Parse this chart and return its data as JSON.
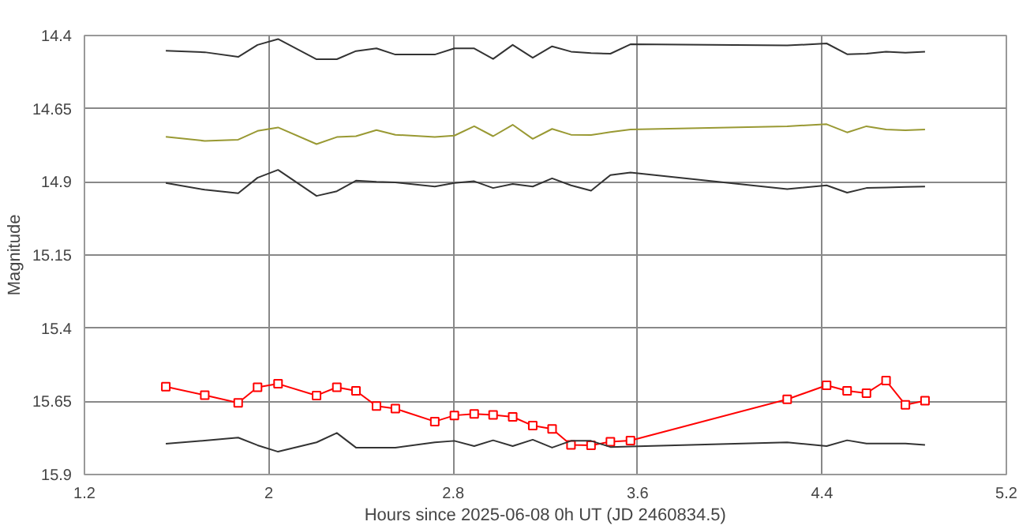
{
  "chart_data": {
    "type": "line",
    "xlabel": "Hours since 2025-06-08 0h UT (JD 2460834.5)",
    "ylabel": "Magnitude",
    "x": [
      1.553,
      1.722,
      1.867,
      1.951,
      2.04,
      2.207,
      2.295,
      2.378,
      2.467,
      2.549,
      2.72,
      2.805,
      2.891,
      2.973,
      3.058,
      3.145,
      3.229,
      3.311,
      3.398,
      3.482,
      3.569,
      4.249,
      4.42,
      4.509,
      4.593,
      4.678,
      4.762,
      4.847
    ],
    "series": [
      {
        "color": "#333333",
        "marker": "none",
        "values": [
          14.452,
          14.457,
          14.473,
          14.432,
          14.412,
          14.481,
          14.481,
          14.453,
          14.444,
          14.465,
          14.465,
          14.444,
          14.444,
          14.48,
          14.432,
          14.476,
          14.437,
          14.455,
          14.46,
          14.462,
          14.43,
          14.434,
          14.427,
          14.464,
          14.462,
          14.455,
          14.459,
          14.455
        ]
      },
      {
        "color": "#999933",
        "marker": "none",
        "values": [
          14.746,
          14.76,
          14.756,
          14.726,
          14.714,
          14.771,
          14.747,
          14.744,
          14.723,
          14.739,
          14.747,
          14.742,
          14.71,
          14.744,
          14.705,
          14.753,
          14.719,
          14.739,
          14.74,
          14.73,
          14.721,
          14.71,
          14.703,
          14.731,
          14.71,
          14.721,
          14.724,
          14.721
        ]
      },
      {
        "color": "#333333",
        "marker": "none",
        "values": [
          14.904,
          14.927,
          14.939,
          14.886,
          14.859,
          14.948,
          14.932,
          14.896,
          14.9,
          14.902,
          14.916,
          14.904,
          14.898,
          14.921,
          14.907,
          14.916,
          14.888,
          14.912,
          14.93,
          14.877,
          14.868,
          14.925,
          14.912,
          14.937,
          14.921,
          14.919,
          14.917,
          14.916
        ]
      },
      {
        "color": "#ff0000",
        "marker": "square",
        "values": [
          15.6,
          15.629,
          15.655,
          15.602,
          15.59,
          15.63,
          15.602,
          15.614,
          15.666,
          15.675,
          15.719,
          15.698,
          15.693,
          15.696,
          15.703,
          15.733,
          15.744,
          15.799,
          15.8,
          15.788,
          15.784,
          15.643,
          15.595,
          15.614,
          15.622,
          15.579,
          15.662,
          15.648
        ]
      },
      {
        "color": "#333333",
        "marker": "none",
        "values": [
          15.795,
          15.784,
          15.774,
          15.8,
          15.822,
          15.79,
          15.758,
          15.808,
          15.808,
          15.808,
          15.79,
          15.785,
          15.803,
          15.783,
          15.803,
          15.781,
          15.808,
          15.785,
          15.785,
          15.806,
          15.804,
          15.79,
          15.803,
          15.783,
          15.794,
          15.794,
          15.794,
          15.799
        ]
      }
    ],
    "xlim": [
      1.2,
      5.2
    ],
    "xticks": [
      1.2,
      2,
      2.8,
      3.6,
      4.4,
      5.2
    ],
    "ylim": [
      15.9,
      14.4
    ],
    "yticks": [
      14.4,
      14.65,
      14.9,
      15.15,
      15.4,
      15.65,
      15.9
    ],
    "grid": true
  }
}
